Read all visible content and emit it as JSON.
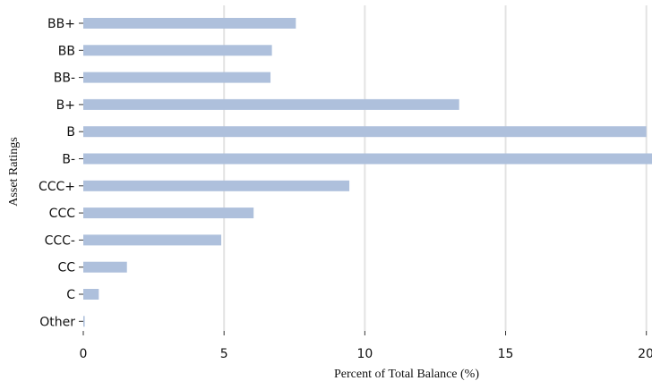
{
  "chart_data": {
    "type": "bar",
    "orientation": "horizontal",
    "categories": [
      "BB+",
      "BB",
      "BB-",
      "B+",
      "B",
      "B-",
      "CCC+",
      "CCC",
      "CCC-",
      "CC",
      "C",
      "Other"
    ],
    "values": [
      7.55,
      6.7,
      6.65,
      13.35,
      20.0,
      20.45,
      9.45,
      6.05,
      4.9,
      1.55,
      0.55,
      0.05
    ],
    "title": "",
    "xlabel": "Percent of Total Balance (%)",
    "ylabel": "Asset Ratings",
    "xlim": [
      0,
      20.2
    ],
    "xticks": [
      "0",
      "5",
      "10",
      "15",
      "20"
    ],
    "grid": "vertical",
    "bar_color": "#aec0dc",
    "grid_color": "#e3e3e3",
    "legend": "none"
  }
}
